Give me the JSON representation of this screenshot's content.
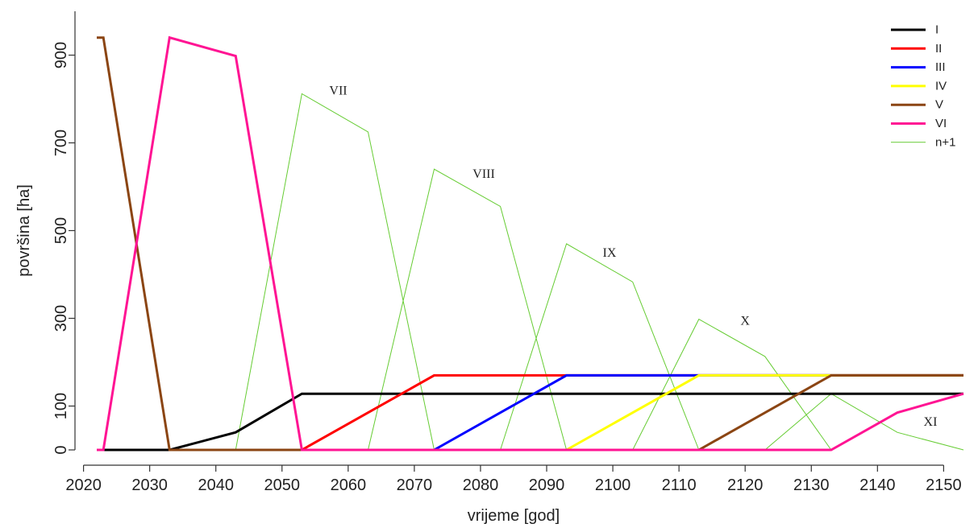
{
  "chart_data": {
    "type": "line",
    "title": "",
    "xlabel": "vrijeme [god]",
    "ylabel": "površina [ha]",
    "xlim": [
      2020,
      2155
    ],
    "ylim": [
      0,
      1000
    ],
    "xticks": [
      2020,
      2030,
      2040,
      2050,
      2060,
      2070,
      2080,
      2090,
      2100,
      2110,
      2120,
      2130,
      2140,
      2150
    ],
    "xtick_labels": [
      "2020",
      "2030",
      "2040",
      "2050",
      "2060",
      "2070",
      "2080",
      "2090",
      "2100",
      "2110",
      "2120",
      "2130",
      "2140",
      "2150"
    ],
    "yticks": [
      0,
      100,
      300,
      500,
      700,
      900
    ],
    "ytick_labels": [
      "0",
      "100",
      "300",
      "500",
      "700",
      "900"
    ],
    "legend": {
      "position": "top-right"
    },
    "series": [
      {
        "name": "I",
        "color": "#000000",
        "width": 3,
        "legend": true,
        "x": [
          2022,
          2033,
          2043,
          2053,
          2153
        ],
        "y": [
          0,
          0,
          40,
          128,
          128
        ]
      },
      {
        "name": "II",
        "color": "#ff0000",
        "width": 3,
        "legend": true,
        "x": [
          2053,
          2073,
          2153
        ],
        "y": [
          0,
          170,
          170
        ]
      },
      {
        "name": "III",
        "color": "#0000ff",
        "width": 3,
        "legend": true,
        "x": [
          2073,
          2093,
          2153
        ],
        "y": [
          0,
          170,
          170
        ]
      },
      {
        "name": "IV",
        "color": "#ffff00",
        "width": 3,
        "legend": true,
        "x": [
          2093,
          2113,
          2153
        ],
        "y": [
          0,
          170,
          170
        ]
      },
      {
        "name": "V",
        "color": "#8b4513",
        "width": 3,
        "legend": true,
        "x": [
          2022,
          2023,
          2033,
          2113,
          2133,
          2153
        ],
        "y": [
          940,
          940,
          0,
          0,
          170,
          170
        ]
      },
      {
        "name": "VI",
        "color": "#ff1493",
        "width": 3,
        "legend": true,
        "x": [
          2022,
          2023,
          2033,
          2043,
          2053,
          2133,
          2143,
          2153
        ],
        "y": [
          0,
          0,
          940,
          898,
          0,
          0,
          85,
          128
        ]
      },
      {
        "name": "n+1",
        "color": "#66cc33",
        "width": 1,
        "legend": true,
        "x": [
          2043,
          2053,
          2063,
          2073
        ],
        "y": [
          0,
          812,
          725,
          0
        ]
      },
      {
        "name": "n+1",
        "color": "#66cc33",
        "width": 1,
        "legend": false,
        "x": [
          2063,
          2073,
          2083,
          2093
        ],
        "y": [
          0,
          640,
          555,
          0
        ]
      },
      {
        "name": "n+1",
        "color": "#66cc33",
        "width": 1,
        "legend": false,
        "x": [
          2083,
          2093,
          2103,
          2113
        ],
        "y": [
          0,
          470,
          383,
          0
        ]
      },
      {
        "name": "n+1",
        "color": "#66cc33",
        "width": 1,
        "legend": false,
        "x": [
          2103,
          2113,
          2123,
          2133
        ],
        "y": [
          0,
          298,
          213,
          0
        ]
      },
      {
        "name": "n+1",
        "color": "#66cc33",
        "width": 1,
        "legend": false,
        "x": [
          2123,
          2133,
          2143,
          2153
        ],
        "y": [
          0,
          128,
          40,
          0
        ]
      }
    ],
    "annotations": [
      {
        "text": "VII",
        "x": 2058.5,
        "y": 810
      },
      {
        "text": "VIII",
        "x": 2080.5,
        "y": 620
      },
      {
        "text": "IX",
        "x": 2099.5,
        "y": 440
      },
      {
        "text": "X",
        "x": 2120,
        "y": 285
      },
      {
        "text": "XI",
        "x": 2148,
        "y": 55
      }
    ]
  }
}
